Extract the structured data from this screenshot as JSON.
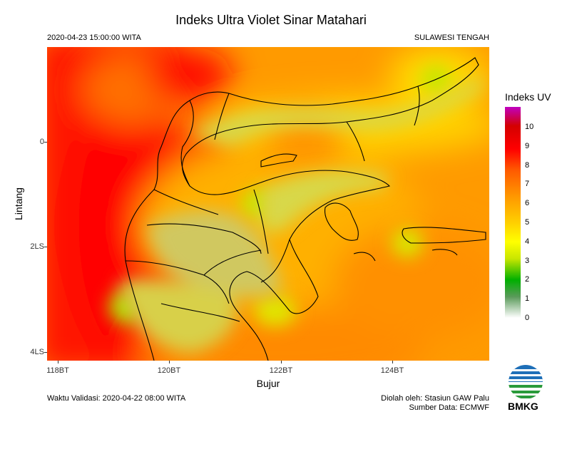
{
  "title": "Indeks Ultra Violet Sinar Matahari",
  "datetime": "2020-04-23 15:00:00 WITA",
  "region": "SULAWESI TENGAH",
  "axes": {
    "ylabel": "Lintang",
    "xlabel": "Bujur",
    "y_ticks": [
      "0",
      "2LS",
      "4LS"
    ],
    "x_ticks": [
      "118BT",
      "120BT",
      "122BT",
      "124BT"
    ]
  },
  "legend": {
    "title": "Indeks UV",
    "labels": [
      "10",
      "9",
      "8",
      "7",
      "6",
      "5",
      "4",
      "3",
      "2",
      "1",
      "0"
    ],
    "colors": [
      "#c000c0",
      "#d40000",
      "#ff0000",
      "#ff6000",
      "#ff9a00",
      "#ffc800",
      "#ffff00",
      "#c8e600",
      "#00b000",
      "#e8f4e8"
    ]
  },
  "footer": {
    "validity": "Waktu Validasi: 2020-04-22 08:00 WITA",
    "processed_by": "Diolah oleh: Stasiun GAW Palu",
    "data_source": "Sumber Data: ECMWF"
  },
  "logo": {
    "text": "BMKG",
    "icon": "bmkg-logo-icon"
  },
  "map_data": {
    "type": "heatmap",
    "x_range_deg_E": [
      117.8,
      125.5
    ],
    "y_range_deg": [
      1.8,
      -4.2
    ],
    "background_value": 7,
    "hotspots_high_uv_west": 8.5,
    "land_uv_approx": 5,
    "low_uv_spots": 3
  }
}
